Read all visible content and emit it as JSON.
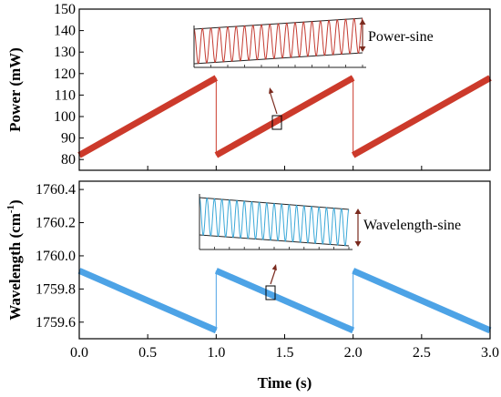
{
  "chart_data": [
    {
      "type": "line",
      "panel": "top",
      "ylabel": "Power (mW)",
      "xlabel": "",
      "xlim": [
        0,
        3
      ],
      "ylim": [
        75,
        150
      ],
      "yticks": [
        80,
        90,
        100,
        110,
        120,
        130,
        140,
        150
      ],
      "color": "#cc3a2b",
      "series": [
        {
          "x": [
            0,
            1
          ],
          "values": [
            82,
            118
          ]
        },
        {
          "x": [
            1,
            2
          ],
          "values": [
            82,
            118
          ]
        },
        {
          "x": [
            2,
            3
          ],
          "values": [
            82,
            118
          ]
        }
      ],
      "inset": {
        "label": "Power-sine",
        "color": "#c43a30",
        "cycles": 20
      }
    },
    {
      "type": "line",
      "panel": "bottom",
      "ylabel": "Wavelength (cm",
      "ylabel_sup": "-1",
      "ylabel_end": ")",
      "xlabel": "Time (s)",
      "xlim": [
        0,
        3
      ],
      "ylim": [
        1759.5,
        1760.45
      ],
      "yticks": [
        1759.6,
        1759.8,
        1760.0,
        1760.2,
        1760.4
      ],
      "ytick_labels": [
        "1759.6",
        "1759.8",
        "1760.0",
        "1760.2",
        "1760.4"
      ],
      "xticks": [
        0.0,
        0.5,
        1.0,
        1.5,
        2.0,
        2.5,
        3.0
      ],
      "xtick_labels": [
        "0.0",
        "0.5",
        "1.0",
        "1.5",
        "2.0",
        "2.5",
        "3.0"
      ],
      "color": "#4da3e6",
      "series": [
        {
          "x": [
            0,
            1
          ],
          "values": [
            1759.91,
            1759.55
          ]
        },
        {
          "x": [
            1,
            2
          ],
          "values": [
            1759.91,
            1759.55
          ]
        },
        {
          "x": [
            2,
            3
          ],
          "values": [
            1759.91,
            1759.55
          ]
        }
      ],
      "inset": {
        "label": "Wavelength-sine",
        "color": "#3aa8d8",
        "cycles": 20
      }
    }
  ]
}
